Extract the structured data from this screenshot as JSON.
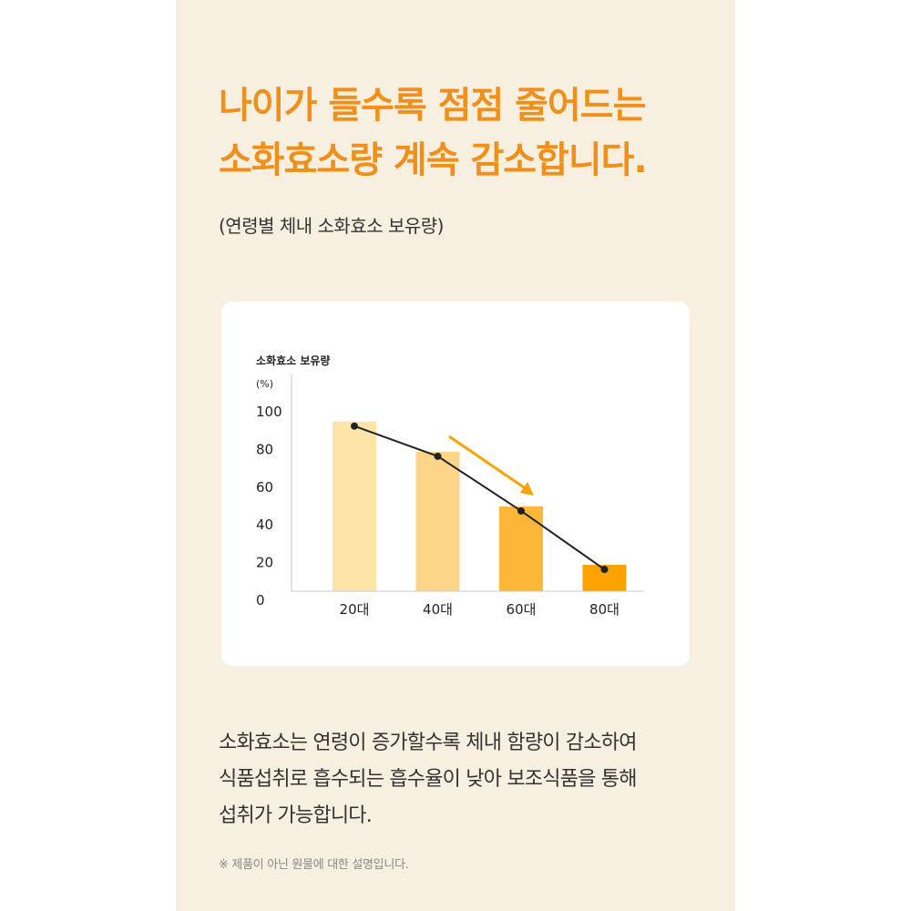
{
  "headline": {
    "line1": "나이가 들수록 점점 줄어드는",
    "line2": "소화효소량 계속 감소합니다."
  },
  "subtitle": "(연령별 체내 소화효소 보유량)",
  "chart_data": {
    "type": "bar",
    "title": "소화효소 보유량",
    "ylabel": "(%)",
    "xlabel": "",
    "categories": [
      "20대",
      "40대",
      "60대",
      "80대"
    ],
    "values": [
      90,
      74,
      45,
      14
    ],
    "yticks": [
      "0",
      "20",
      "40",
      "60",
      "80",
      "100"
    ],
    "ylim": [
      0,
      100
    ],
    "grid": false,
    "legend": "none",
    "bar_colors": [
      "#fde4a8",
      "#fcd589",
      "#fcb738",
      "#f9a200"
    ],
    "line_color": "#222222",
    "arrow_color": "#f9a200"
  },
  "body": {
    "line1": "소화효소는 연령이 증가할수록 체내 함량이 감소하여",
    "line2": "식품섭취로 흡수되는 흡수율이 낮아 보조식품을 통해",
    "line3": "섭취가 가능합니다."
  },
  "footnote": "※ 제품이 아닌 원물에 대한 설명입니다."
}
